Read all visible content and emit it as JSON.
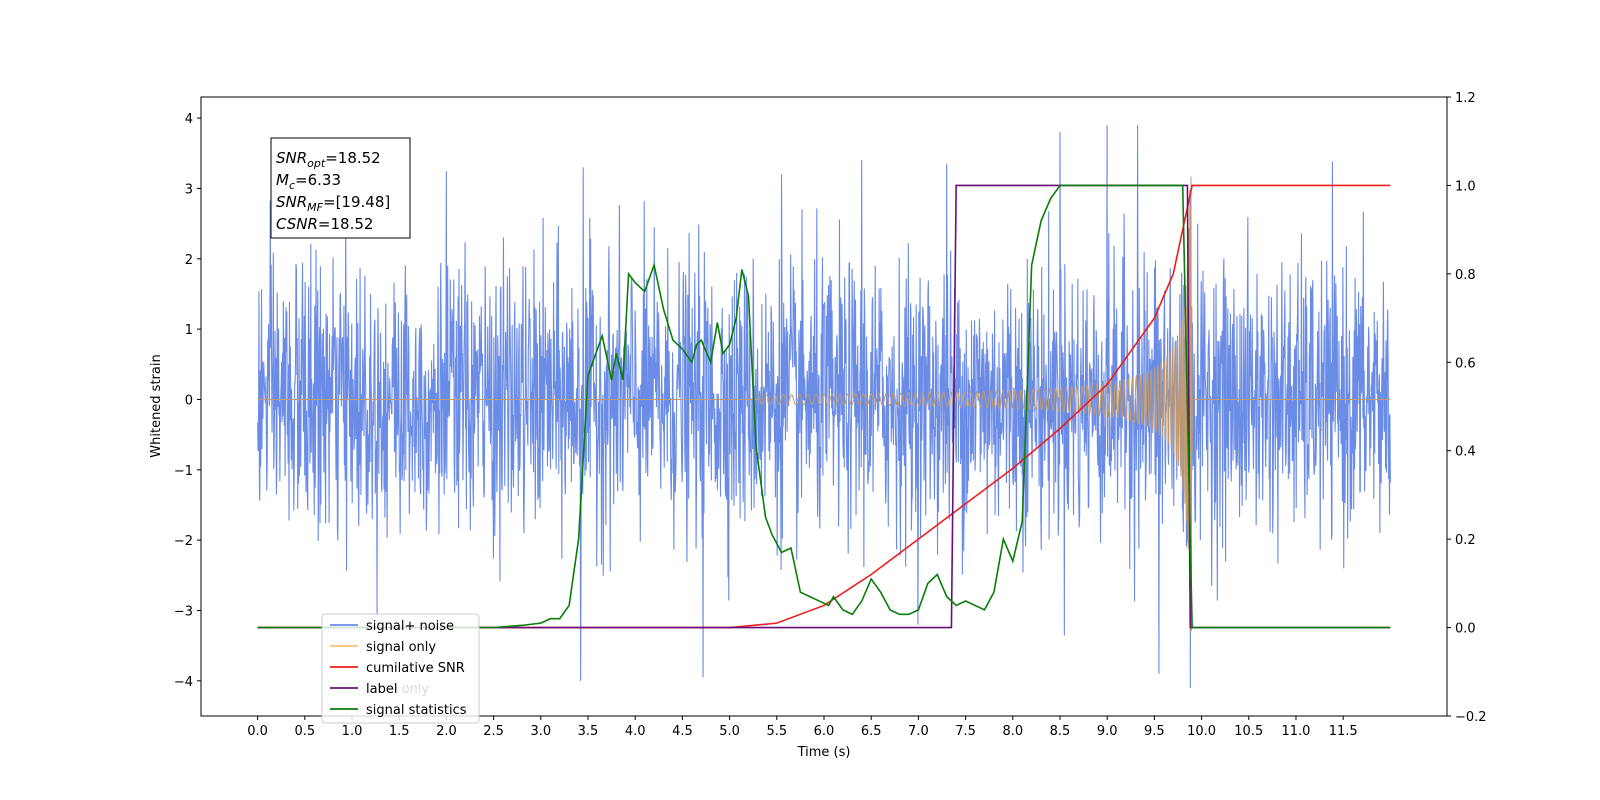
{
  "chart_data": {
    "type": "line",
    "xlabel": "Time (s)",
    "ylabel_left": "Whitened strain",
    "ylabel_right": "",
    "xlim": [
      -0.6,
      12.6
    ],
    "ylim_left": [
      -4.5,
      4.3
    ],
    "ylim_right": [
      -0.2,
      1.2
    ],
    "x_ticks": [
      "0.0",
      "0.5",
      "1.0",
      "1.5",
      "2.0",
      "2.5",
      "3.0",
      "3.5",
      "4.0",
      "4.5",
      "5.0",
      "5.5",
      "6.0",
      "6.5",
      "7.0",
      "7.5",
      "8.0",
      "8.5",
      "9.0",
      "9.5",
      "10.0",
      "10.5",
      "11.0",
      "11.5"
    ],
    "y_left_ticks": [
      "4",
      "3",
      "2",
      "1",
      "0",
      "−1",
      "−2",
      "−3",
      "−4"
    ],
    "y_right_ticks": [
      "1.2",
      "1.0",
      "0.8",
      "0.6",
      "0.4",
      "0.2",
      "0.0",
      "−0.2"
    ],
    "grid": false,
    "legend_placement": "lower-left",
    "annotation": {
      "lines": [
        {
          "label": "SNR",
          "sub": "opt",
          "value": "=18.52"
        },
        {
          "label": "M",
          "sub": "c",
          "value": "=6.33"
        },
        {
          "label": "SNR",
          "sub": "MF",
          "value": "=[19.48]"
        },
        {
          "label": "CSNR",
          "sub": "",
          "value": "=18.52"
        }
      ]
    },
    "series": [
      {
        "name": "signal+ noise",
        "color": "#6a8be6",
        "axis": "left",
        "x_range": [
          0.0,
          12.0
        ],
        "noise_std": 0.95,
        "spikes": [
          {
            "x": 3.42,
            "y": -4.0
          },
          {
            "x": 4.72,
            "y": -3.95
          },
          {
            "x": 9.88,
            "y": -4.1
          },
          {
            "x": 9.55,
            "y": -3.9
          },
          {
            "x": 9.32,
            "y": 3.9
          },
          {
            "x": 9.0,
            "y": 3.9
          },
          {
            "x": 8.5,
            "y": 3.8
          },
          {
            "x": 7.3,
            "y": 3.35
          },
          {
            "x": 3.45,
            "y": 3.3
          },
          {
            "x": 5.55,
            "y": 3.2
          },
          {
            "x": 6.4,
            "y": 3.4
          },
          {
            "x": 2.0,
            "y": 3.25
          }
        ]
      },
      {
        "name": "signal only",
        "color": "#c09a72",
        "axis": "left",
        "chirp_start": 5.3,
        "chirp_end": 9.9,
        "amplitude_start": 0.02,
        "amplitude_mid": 0.35,
        "amplitude_peak": 3.3
      },
      {
        "name": "cumilative SNR",
        "color": "#ee1c1c",
        "axis": "right",
        "x": [
          0.0,
          5.0,
          5.5,
          6.0,
          6.5,
          7.0,
          7.5,
          8.0,
          8.5,
          9.0,
          9.5,
          9.7,
          9.85,
          9.9,
          12.0
        ],
        "y": [
          0.0,
          0.0,
          0.01,
          0.05,
          0.12,
          0.2,
          0.28,
          0.36,
          0.45,
          0.55,
          0.7,
          0.8,
          0.95,
          1.0,
          1.0
        ]
      },
      {
        "name": "label",
        "color": "#6a0f7a",
        "axis": "right",
        "x": [
          0.0,
          7.35,
          7.4,
          9.85,
          9.88,
          12.0
        ],
        "y": [
          0.0,
          0.0,
          1.0,
          1.0,
          0.0,
          0.0
        ]
      },
      {
        "name": "signal statistics",
        "color": "#0a7d0a",
        "axis": "right",
        "x": [
          0.0,
          2.2,
          2.5,
          2.8,
          3.0,
          3.1,
          3.2,
          3.3,
          3.4,
          3.5,
          3.55,
          3.65,
          3.75,
          3.8,
          3.87,
          3.93,
          4.0,
          4.1,
          4.2,
          4.3,
          4.4,
          4.5,
          4.6,
          4.65,
          4.7,
          4.8,
          4.87,
          4.93,
          5.0,
          5.07,
          5.13,
          5.2,
          5.28,
          5.38,
          5.45,
          5.55,
          5.65,
          5.75,
          5.85,
          5.95,
          6.05,
          6.1,
          6.2,
          6.3,
          6.4,
          6.5,
          6.6,
          6.7,
          6.8,
          6.9,
          7.0,
          7.1,
          7.2,
          7.3,
          7.4,
          7.5,
          7.6,
          7.7,
          7.8,
          7.9,
          8.0,
          8.1,
          8.2,
          8.3,
          8.4,
          8.5,
          8.6,
          9.0,
          9.5,
          9.8,
          9.9,
          12.0
        ],
        "y": [
          0.0,
          0.0,
          0.0,
          0.005,
          0.01,
          0.02,
          0.02,
          0.05,
          0.2,
          0.57,
          0.6,
          0.66,
          0.56,
          0.62,
          0.56,
          0.8,
          0.78,
          0.76,
          0.82,
          0.72,
          0.65,
          0.63,
          0.6,
          0.64,
          0.65,
          0.6,
          0.69,
          0.62,
          0.64,
          0.7,
          0.81,
          0.75,
          0.41,
          0.25,
          0.21,
          0.17,
          0.18,
          0.08,
          0.07,
          0.06,
          0.05,
          0.07,
          0.04,
          0.03,
          0.06,
          0.11,
          0.08,
          0.04,
          0.03,
          0.03,
          0.04,
          0.1,
          0.12,
          0.07,
          0.05,
          0.06,
          0.05,
          0.04,
          0.08,
          0.2,
          0.15,
          0.24,
          0.82,
          0.92,
          0.97,
          1.0,
          1.0,
          1.0,
          1.0,
          1.0,
          0.0,
          0.0
        ]
      }
    ],
    "legend_entries": [
      {
        "name": "signal+ noise",
        "color": "#6a8be6"
      },
      {
        "name": "signal only",
        "color": "#f5c26b"
      },
      {
        "name": "cumilative SNR",
        "color": "#ee1c1c"
      },
      {
        "name": "label",
        "color": "#6a0f7a"
      },
      {
        "name": "signal statistics",
        "color": "#0a7d0a"
      }
    ],
    "legend_ghost_text": "label only"
  }
}
